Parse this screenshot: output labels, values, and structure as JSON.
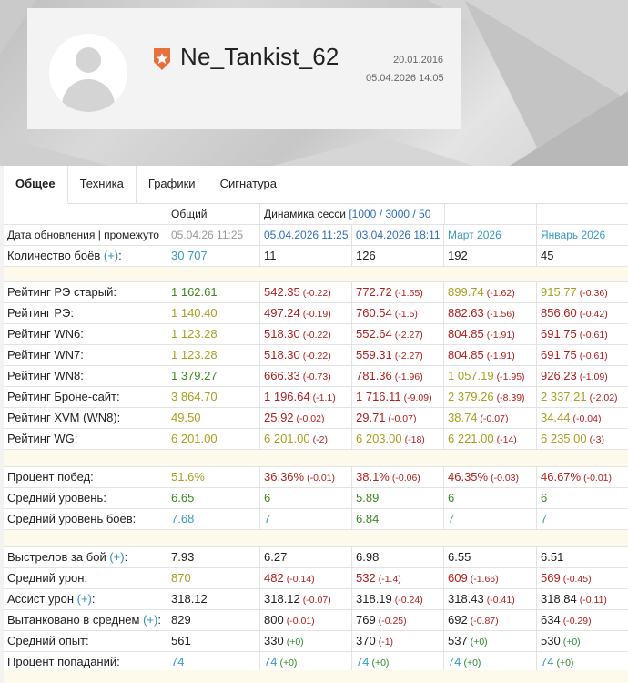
{
  "profile": {
    "nickname": "Ne_Tankist_62",
    "registered": "20.01.2016",
    "last_battle": "05.04.2026 14:05",
    "badge_color": "#e8703a"
  },
  "tabs": [
    {
      "label": "Общее",
      "active": true
    },
    {
      "label": "Техника",
      "active": false
    },
    {
      "label": "Графики",
      "active": false
    },
    {
      "label": "Сигнатура",
      "active": false
    }
  ],
  "table": {
    "header": {
      "col1": "Общий",
      "col2_prefix": "Динамика сесси",
      "col2_links": "[1000 / 3000 / 50"
    },
    "update_row": {
      "label": "Дата обновления | промежуто",
      "overall": "05.04.26 11:25",
      "p1": "05.04.2026 11:25",
      "p2": "03.04.2026 18:11",
      "p3": "Март 2026",
      "p4": "Январь 2026"
    },
    "battles": {
      "label": "Количество боёв",
      "plus": "(+)",
      "overall": "30 707",
      "p1": "11",
      "p2": "126",
      "p3": "192",
      "p4": "45"
    },
    "ratings": [
      {
        "label": "Рейтинг РЭ старый:",
        "overall": "1 162.61",
        "v": [
          "542.35",
          "772.72",
          "899.74",
          "915.77"
        ],
        "d": [
          "(-0.22)",
          "(-1.55)",
          "(-1.62)",
          "(-0.36)"
        ]
      },
      {
        "label": "Рейтинг РЭ:",
        "overall": "1 140.40",
        "v": [
          "497.24",
          "760.54",
          "882.63",
          "856.60"
        ],
        "d": [
          "(-0.19)",
          "(-1.5)",
          "(-1.56)",
          "(-0.42)"
        ]
      },
      {
        "label": "Рейтинг WN6:",
        "overall": "1 123.28",
        "v": [
          "518.30",
          "552.64",
          "804.85",
          "691.75"
        ],
        "d": [
          "(-0.22)",
          "(-2.27)",
          "(-1.91)",
          "(-0.61)"
        ]
      },
      {
        "label": "Рейтинг WN7:",
        "overall": "1 123.28",
        "v": [
          "518.30",
          "559.31",
          "804.85",
          "691.75"
        ],
        "d": [
          "(-0.22)",
          "(-2.27)",
          "(-1.91)",
          "(-0.61)"
        ]
      },
      {
        "label": "Рейтинг WN8:",
        "overall": "1 379.27",
        "v": [
          "666.33",
          "781.36",
          "1 057.19",
          "926.23"
        ],
        "d": [
          "(-0.73)",
          "(-1.96)",
          "(-1.95)",
          "(-1.09)"
        ]
      },
      {
        "label": "Рейтинг Броне-сайт:",
        "overall": "3 864.70",
        "v": [
          "1 196.64",
          "1 716.11",
          "2 379.26",
          "2 337.21"
        ],
        "d": [
          "(-1.1)",
          "(-9.09)",
          "(-8.39)",
          "(-2.02)"
        ]
      },
      {
        "label": "Рейтинг XVM (WN8):",
        "overall": "49.50",
        "v": [
          "25.92",
          "29.71",
          "38.74",
          "34.44"
        ],
        "d": [
          "(-0.02)",
          "(-0.07)",
          "(-0.07)",
          "(-0.04)"
        ]
      },
      {
        "label": "Рейтинг WG:",
        "overall": "6 201.00",
        "v": [
          "6 201.00",
          "6 203.00",
          "6 221.00",
          "6 235.00"
        ],
        "d": [
          "(-2)",
          "(-18)",
          "(-14)",
          "(-3)"
        ]
      }
    ],
    "winrate": {
      "label": "Процент побед:",
      "overall": "51.6%",
      "v": [
        "36.36%",
        "38.1%",
        "46.35%",
        "46.67%"
      ],
      "d": [
        "(-0.01)",
        "(-0.06)",
        "(-0.03)",
        "(-0.01)"
      ]
    },
    "avg_tier": {
      "label": "Средний уровень:",
      "overall": "6.65",
      "v": [
        "6",
        "5.89",
        "6",
        "6"
      ]
    },
    "avg_battle_tier": {
      "label": "Средний уровень боёв:",
      "overall": "7.68",
      "v": [
        "7",
        "6.84",
        "7",
        "7"
      ]
    },
    "shots": {
      "label": "Выстрелов за бой",
      "plus": "(+)",
      "overall": "7.93",
      "v": [
        "6.27",
        "6.98",
        "6.55",
        "6.51"
      ]
    },
    "damage": {
      "label": "Средний урон:",
      "overall": "870",
      "v": [
        "482",
        "532",
        "609",
        "569"
      ],
      "d": [
        "(-0.14)",
        "(-1.4)",
        "(-1.66)",
        "(-0.45)"
      ]
    },
    "assist": {
      "label": "Ассист урон",
      "plus": "(+)",
      "overall": "318.12",
      "v": [
        "318.12",
        "318.19",
        "318.43",
        "318.84"
      ],
      "d": [
        "(-0.07)",
        "(-0.24)",
        "(-0.41)",
        "(-0.11)"
      ]
    },
    "tanked": {
      "label": "Вытанковано в среднем",
      "plus": "(+)",
      "overall": "829",
      "v": [
        "800",
        "769",
        "692",
        "634"
      ],
      "d": [
        "(-0.01)",
        "(-0.25)",
        "(-0.87)",
        "(-0.29)"
      ]
    },
    "xp": {
      "label": "Средний опыт:",
      "overall": "561",
      "v": [
        "330",
        "370",
        "537",
        "530"
      ],
      "d": [
        "(+0)",
        "(-1)",
        "(+0)",
        "(+0)"
      ]
    },
    "accuracy": {
      "label": "Процент попаданий:",
      "overall": "74",
      "v": [
        "74",
        "74",
        "74",
        "74"
      ],
      "d": [
        "(+0)",
        "(+0)",
        "(+0)",
        "(+0)"
      ]
    }
  }
}
